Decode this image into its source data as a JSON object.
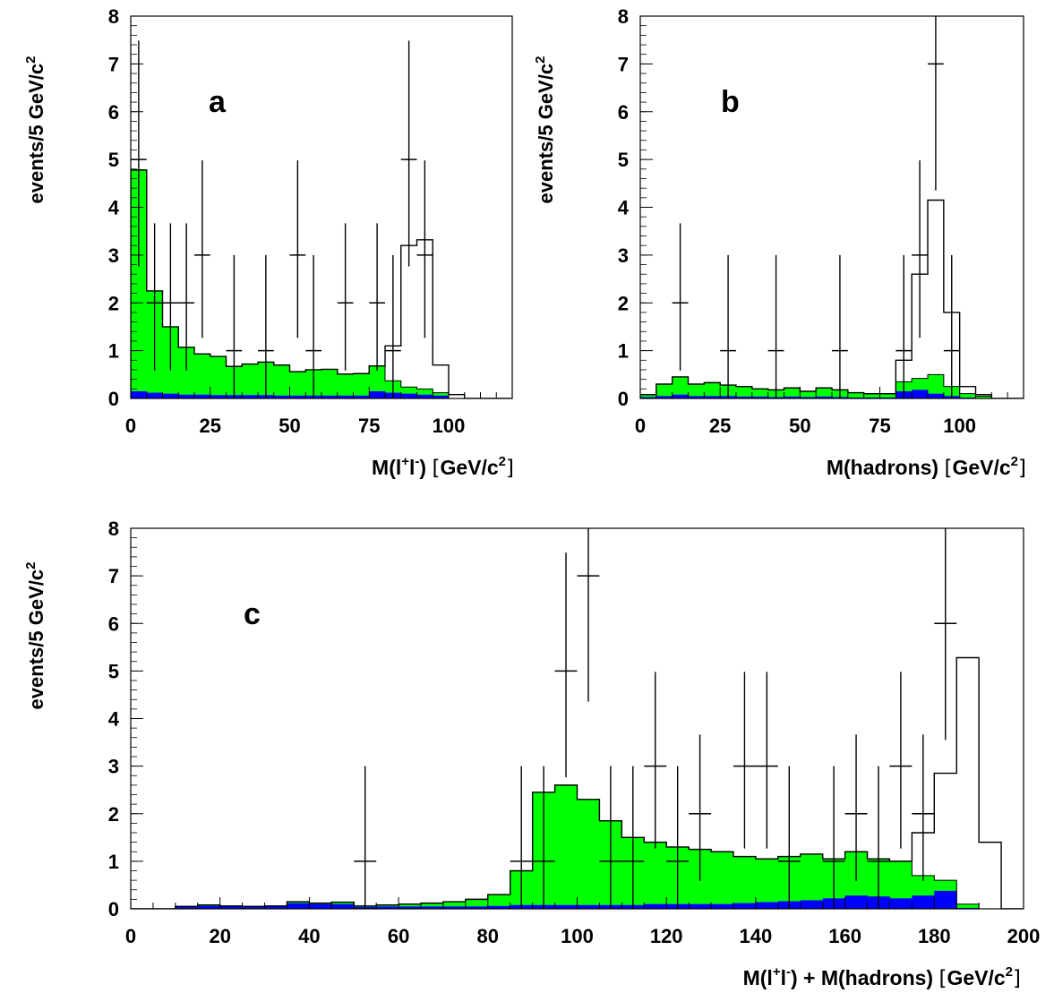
{
  "chart_data": [
    {
      "type": "histogram",
      "panel_label": "a",
      "ylabel": "events/5 GeV/c",
      "ylabel_sup": "2",
      "xlabel": [
        {
          "t": "M(l",
          "s": "n"
        },
        {
          "t": "+",
          "s": "sup"
        },
        {
          "t": "l",
          "s": "n"
        },
        {
          "t": "-",
          "s": "sup"
        },
        {
          "t": ") ",
          "s": "n"
        },
        {
          "t": "[",
          "s": "thin"
        },
        {
          "t": "GeV/c",
          "s": "n"
        },
        {
          "t": "2",
          "s": "sup"
        },
        {
          "t": "]",
          "s": "thin"
        }
      ],
      "xlim": [
        0,
        120
      ],
      "ylim": [
        0,
        8
      ],
      "xticks": [
        0,
        25,
        50,
        75,
        100
      ],
      "xminor": 5,
      "yticks": [
        0,
        1,
        2,
        3,
        4,
        5,
        6,
        7,
        8
      ],
      "bin_width": 5,
      "bin_edges_start": 0,
      "green_total": [
        4.78,
        2.25,
        1.5,
        1.07,
        0.93,
        0.88,
        0.67,
        0.72,
        0.76,
        0.7,
        0.56,
        0.6,
        0.61,
        0.51,
        0.52,
        0.68,
        0.37,
        0.24,
        0.2,
        0.12,
        0.0,
        0.0,
        0.0,
        0.0
      ],
      "blue": [
        0.15,
        0.12,
        0.1,
        0.08,
        0.08,
        0.07,
        0.07,
        0.07,
        0.07,
        0.06,
        0.06,
        0.06,
        0.06,
        0.06,
        0.06,
        0.15,
        0.12,
        0.1,
        0.08,
        0.06,
        0.0,
        0.0,
        0.0,
        0.0
      ],
      "open_total": [
        4.78,
        2.25,
        1.5,
        1.07,
        0.93,
        0.88,
        0.67,
        0.72,
        0.76,
        0.7,
        0.56,
        0.6,
        0.61,
        0.51,
        0.52,
        0.68,
        1.1,
        3.2,
        3.32,
        0.7,
        0.08,
        0.0,
        0.0,
        0.0
      ],
      "data_points": [
        {
          "x": 2.5,
          "y": 5
        },
        {
          "x": 7.5,
          "y": 2
        },
        {
          "x": 12.5,
          "y": 2
        },
        {
          "x": 17.5,
          "y": 2
        },
        {
          "x": 22.5,
          "y": 3
        },
        {
          "x": 32.5,
          "y": 1
        },
        {
          "x": 42.5,
          "y": 1
        },
        {
          "x": 52.5,
          "y": 3
        },
        {
          "x": 57.5,
          "y": 1
        },
        {
          "x": 67.5,
          "y": 2
        },
        {
          "x": 77.5,
          "y": 2
        },
        {
          "x": 82.5,
          "y": 1
        },
        {
          "x": 87.5,
          "y": 5
        },
        {
          "x": 92.5,
          "y": 3
        }
      ],
      "colors": {
        "green": "#00ff00",
        "blue": "#0000ff",
        "line": "#000000"
      }
    },
    {
      "type": "histogram",
      "panel_label": "b",
      "ylabel": "events/5 GeV/c",
      "ylabel_sup": "2",
      "xlabel": [
        {
          "t": "M(hadrons) ",
          "s": "n"
        },
        {
          "t": "[",
          "s": "thin"
        },
        {
          "t": "GeV/c",
          "s": "n"
        },
        {
          "t": "2",
          "s": "sup"
        },
        {
          "t": "]",
          "s": "thin"
        }
      ],
      "xlim": [
        0,
        120
      ],
      "ylim": [
        0,
        8
      ],
      "xticks": [
        0,
        25,
        50,
        75,
        100
      ],
      "xminor": 5,
      "yticks": [
        0,
        1,
        2,
        3,
        4,
        5,
        6,
        7,
        8
      ],
      "bin_width": 5,
      "bin_edges_start": 0,
      "green_total": [
        0.08,
        0.3,
        0.45,
        0.3,
        0.33,
        0.28,
        0.25,
        0.2,
        0.18,
        0.22,
        0.15,
        0.22,
        0.18,
        0.12,
        0.1,
        0.1,
        0.35,
        0.42,
        0.5,
        0.25,
        0.1,
        0.05,
        0.0,
        0.0
      ],
      "blue": [
        0.03,
        0.05,
        0.08,
        0.05,
        0.05,
        0.05,
        0.04,
        0.04,
        0.03,
        0.04,
        0.03,
        0.04,
        0.03,
        0.02,
        0.02,
        0.02,
        0.15,
        0.18,
        0.1,
        0.05,
        0.02,
        0.01,
        0.0,
        0.0
      ],
      "open_total": [
        0.08,
        0.3,
        0.45,
        0.3,
        0.33,
        0.28,
        0.25,
        0.2,
        0.18,
        0.22,
        0.15,
        0.22,
        0.18,
        0.12,
        0.1,
        0.1,
        0.8,
        2.6,
        4.15,
        1.8,
        0.25,
        0.08,
        0.0,
        0.0
      ],
      "data_points": [
        {
          "x": 12.5,
          "y": 2
        },
        {
          "x": 27.5,
          "y": 1
        },
        {
          "x": 42.5,
          "y": 1
        },
        {
          "x": 62.5,
          "y": 1
        },
        {
          "x": 82.5,
          "y": 1
        },
        {
          "x": 87.5,
          "y": 3
        },
        {
          "x": 92.5,
          "y": 7
        },
        {
          "x": 97.5,
          "y": 1
        }
      ],
      "colors": {
        "green": "#00ff00",
        "blue": "#0000ff",
        "line": "#000000"
      }
    },
    {
      "type": "histogram",
      "panel_label": "c",
      "ylabel": "events/5 GeV/c",
      "ylabel_sup": "2",
      "xlabel": [
        {
          "t": "M(l",
          "s": "n"
        },
        {
          "t": "+",
          "s": "sup"
        },
        {
          "t": "l",
          "s": "n"
        },
        {
          "t": "-",
          "s": "sup"
        },
        {
          "t": ") + M(hadrons) ",
          "s": "n"
        },
        {
          "t": "[",
          "s": "thin"
        },
        {
          "t": "GeV/c",
          "s": "n"
        },
        {
          "t": "2",
          "s": "sup"
        },
        {
          "t": "]",
          "s": "thin"
        }
      ],
      "xlim": [
        0,
        200
      ],
      "ylim": [
        0,
        8
      ],
      "xticks": [
        0,
        20,
        40,
        60,
        80,
        100,
        120,
        140,
        160,
        180,
        200
      ],
      "xminor": 5,
      "yticks": [
        0,
        1,
        2,
        3,
        4,
        5,
        6,
        7,
        8
      ],
      "bin_width": 5,
      "bin_edges_start": 0,
      "green_total": [
        0.0,
        0.0,
        0.05,
        0.08,
        0.06,
        0.05,
        0.06,
        0.15,
        0.12,
        0.14,
        0.06,
        0.08,
        0.1,
        0.12,
        0.15,
        0.2,
        0.3,
        0.8,
        2.45,
        2.6,
        2.3,
        1.85,
        1.5,
        1.4,
        1.3,
        1.25,
        1.2,
        1.1,
        1.05,
        1.1,
        1.15,
        1.05,
        1.2,
        1.05,
        1.0,
        0.7,
        0.6,
        0.1,
        0.0,
        0.0
      ],
      "blue": [
        0.0,
        0.0,
        0.04,
        0.06,
        0.05,
        0.04,
        0.05,
        0.12,
        0.1,
        0.1,
        0.04,
        0.05,
        0.05,
        0.05,
        0.05,
        0.05,
        0.06,
        0.08,
        0.08,
        0.08,
        0.08,
        0.08,
        0.08,
        0.1,
        0.1,
        0.1,
        0.1,
        0.12,
        0.14,
        0.16,
        0.18,
        0.22,
        0.28,
        0.26,
        0.22,
        0.28,
        0.38,
        0.02,
        0.0,
        0.0
      ],
      "open_total": [
        0.0,
        0.0,
        0.05,
        0.08,
        0.06,
        0.05,
        0.06,
        0.15,
        0.12,
        0.14,
        0.06,
        0.08,
        0.1,
        0.12,
        0.15,
        0.2,
        0.3,
        0.8,
        2.45,
        2.6,
        2.3,
        1.85,
        1.5,
        1.4,
        1.3,
        1.25,
        1.2,
        1.1,
        1.05,
        1.1,
        1.15,
        1.05,
        1.2,
        1.05,
        1.0,
        1.6,
        2.85,
        5.28,
        1.4,
        0.0
      ],
      "data_points": [
        {
          "x": 52.5,
          "y": 1
        },
        {
          "x": 87.5,
          "y": 1
        },
        {
          "x": 92.5,
          "y": 1
        },
        {
          "x": 97.5,
          "y": 5
        },
        {
          "x": 102.5,
          "y": 7
        },
        {
          "x": 107.5,
          "y": 1
        },
        {
          "x": 112.5,
          "y": 1
        },
        {
          "x": 117.5,
          "y": 3
        },
        {
          "x": 122.5,
          "y": 1
        },
        {
          "x": 127.5,
          "y": 2
        },
        {
          "x": 137.5,
          "y": 3
        },
        {
          "x": 142.5,
          "y": 3
        },
        {
          "x": 147.5,
          "y": 1
        },
        {
          "x": 157.5,
          "y": 1
        },
        {
          "x": 162.5,
          "y": 2
        },
        {
          "x": 167.5,
          "y": 1
        },
        {
          "x": 172.5,
          "y": 3
        },
        {
          "x": 177.5,
          "y": 2
        },
        {
          "x": 182.5,
          "y": 6
        }
      ],
      "colors": {
        "green": "#00ff00",
        "blue": "#0000ff",
        "line": "#000000"
      }
    }
  ]
}
